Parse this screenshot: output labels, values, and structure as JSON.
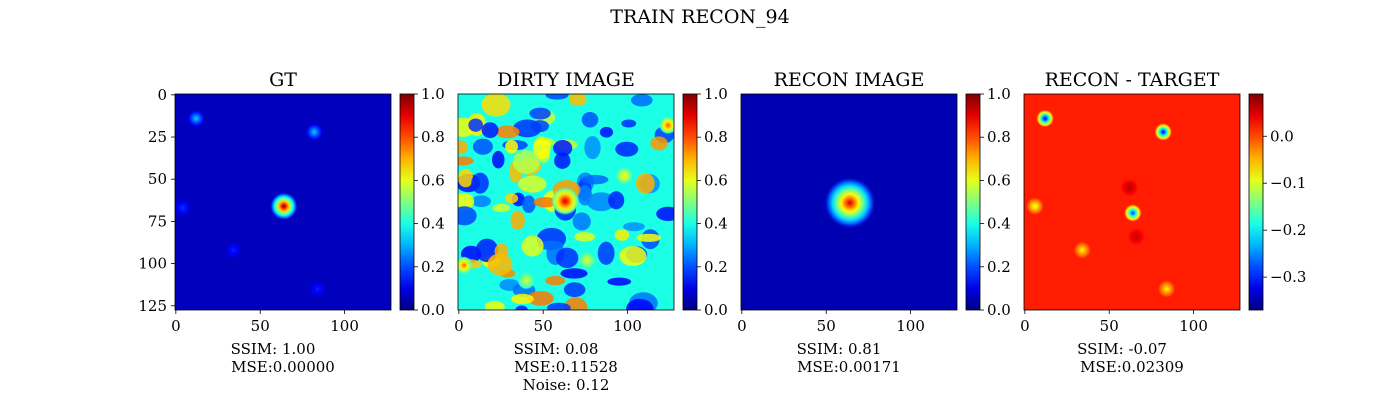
{
  "figure": {
    "title": "TRAIN RECON_94"
  },
  "chart_data": [
    {
      "type": "heatmap",
      "title": "GT",
      "colormap": "jet",
      "colorbar": {
        "ticks": [
          "0.0",
          "0.2",
          "0.4",
          "0.6",
          "0.8",
          "1.0"
        ],
        "range": [
          0,
          1
        ]
      },
      "xticks": [
        "0",
        "50",
        "100"
      ],
      "yticks": [
        "0",
        "25",
        "50",
        "75",
        "100",
        "125"
      ],
      "xlim": [
        0,
        127
      ],
      "ylim": [
        127,
        0
      ],
      "metrics": [
        "SSIM: 1.00",
        "MSE:0.00000"
      ],
      "blobs": [
        {
          "x": 64,
          "y": 66,
          "value": 1.0
        },
        {
          "x": 12,
          "y": 14,
          "value": 0.33
        },
        {
          "x": 82,
          "y": 22,
          "value": 0.33
        },
        {
          "x": 4,
          "y": 67,
          "value": 0.18
        },
        {
          "x": 34,
          "y": 92,
          "value": 0.16
        },
        {
          "x": 84,
          "y": 115,
          "value": 0.16
        }
      ],
      "background": 0.06
    },
    {
      "type": "heatmap",
      "title": "DIRTY IMAGE",
      "colormap": "jet",
      "colorbar": {
        "ticks": [
          "0.0",
          "0.2",
          "0.4",
          "0.6",
          "0.8",
          "1.0"
        ],
        "range": [
          0,
          1
        ]
      },
      "xticks": [
        "0",
        "50",
        "100"
      ],
      "yticks": [],
      "xlim": [
        0,
        127
      ],
      "ylim": [
        127,
        0
      ],
      "metrics": [
        "SSIM: 0.08",
        "MSE:0.11528",
        "Noise: 0.12"
      ],
      "blobs": [
        {
          "x": 63,
          "y": 63,
          "value": 0.92
        },
        {
          "x": 124,
          "y": 18,
          "value": 0.8
        },
        {
          "x": 3,
          "y": 101,
          "value": 0.78
        },
        {
          "x": 98,
          "y": 48,
          "value": 0.65
        },
        {
          "x": 76,
          "y": 98,
          "value": 0.6
        },
        {
          "x": 40,
          "y": 110,
          "value": 0.58
        }
      ],
      "background": 0.4
    },
    {
      "type": "heatmap",
      "title": "RECON IMAGE",
      "colormap": "jet",
      "colorbar": {
        "ticks": [
          "0.0",
          "0.2",
          "0.4",
          "0.6",
          "0.8",
          "1.0"
        ],
        "range": [
          0,
          1
        ]
      },
      "xticks": [
        "0",
        "50",
        "100"
      ],
      "yticks": [],
      "xlim": [
        0,
        127
      ],
      "ylim": [
        127,
        0
      ],
      "metrics": [
        "SSIM: 0.81",
        "MSE:0.00171"
      ],
      "blobs": [
        {
          "x": 64,
          "y": 64,
          "value": 0.92
        }
      ],
      "background": 0.05
    },
    {
      "type": "heatmap",
      "title": "RECON - TARGET",
      "colormap": "jet",
      "colorbar": {
        "ticks": [
          "0.0",
          "−0.1",
          "−0.2",
          "−0.3"
        ],
        "tick_values": [
          0.0,
          -0.1,
          -0.2,
          -0.3
        ],
        "range": [
          -0.37,
          0.09
        ]
      },
      "xticks": [
        "0",
        "50",
        "100"
      ],
      "yticks": [],
      "xlim": [
        0,
        127
      ],
      "ylim": [
        127,
        0
      ],
      "metrics": [
        "SSIM: -0.07",
        "MSE:0.02309"
      ],
      "blobs": [
        {
          "x": 12,
          "y": 14,
          "value": -0.34
        },
        {
          "x": 82,
          "y": 22,
          "value": -0.33
        },
        {
          "x": 64,
          "y": 70,
          "value": -0.3
        },
        {
          "x": 6,
          "y": 66,
          "value": -0.1
        },
        {
          "x": 34,
          "y": 92,
          "value": -0.08
        },
        {
          "x": 84,
          "y": 115,
          "value": -0.08
        },
        {
          "x": 62,
          "y": 55,
          "value": 0.07
        },
        {
          "x": 66,
          "y": 84,
          "value": 0.06
        }
      ],
      "background": 0.02
    }
  ]
}
